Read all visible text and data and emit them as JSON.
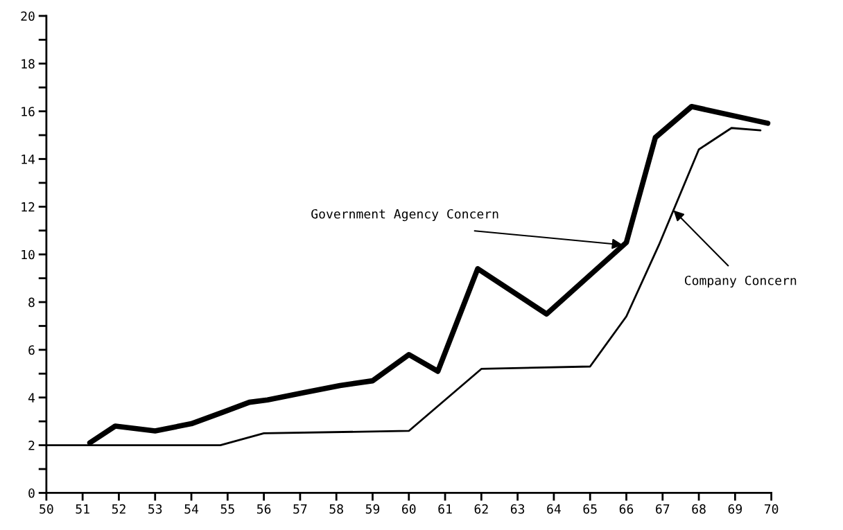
{
  "chart_data": {
    "type": "line",
    "xlim": [
      50,
      70
    ],
    "xticks": [
      50,
      51,
      52,
      53,
      54,
      55,
      56,
      57,
      58,
      59,
      60,
      61,
      62,
      63,
      64,
      65,
      66,
      67,
      68,
      69,
      70
    ],
    "ylim": [
      0,
      20
    ],
    "yticks": [
      0,
      {
        "value": 1,
        "label": null
      },
      2,
      {
        "value": 3,
        "label": null
      },
      4,
      {
        "value": 5,
        "label": null
      },
      6,
      {
        "value": 7,
        "label": null
      },
      8,
      {
        "value": 9,
        "label": null
      },
      10,
      {
        "value": 11,
        "label": null
      },
      12,
      {
        "value": 13,
        "label": null
      },
      14,
      {
        "value": 15,
        "label": null
      },
      16,
      {
        "value": 17,
        "label": null
      },
      18,
      {
        "value": 19,
        "label": null
      },
      20
    ],
    "grid": false,
    "marker": "none",
    "line_style": "solid",
    "series": [
      {
        "color": "#000000",
        "x": [
          51.2,
          51.9,
          53.0,
          54.0,
          54.9,
          55.6,
          56.1,
          57.1,
          58.1,
          59.0,
          60.0,
          60.8,
          61.9,
          63.8,
          66.0,
          66.8,
          67.8,
          69.9
        ],
        "values": [
          2.1,
          2.8,
          2.6,
          2.9,
          3.4,
          3.8,
          3.9,
          4.2,
          4.5,
          4.7,
          5.8,
          5.1,
          9.4,
          7.5,
          10.5,
          14.9,
          16.2,
          15.5
        ]
      },
      {
        "color": "#000000",
        "x": [
          50.0,
          54.8,
          56.0,
          60.0,
          62.0,
          65.0,
          66.0,
          66.9,
          68.0,
          68.9,
          69.7
        ],
        "values": [
          2.0,
          2.0,
          2.5,
          2.6,
          5.2,
          5.3,
          7.4,
          10.4,
          14.4,
          15.3,
          15.2
        ]
      }
    ],
    "annotations": [
      {
        "text": "Government Agency Concern",
        "x": 65.9,
        "y": 10.4
      },
      {
        "text": "Company Concern",
        "x": 67.3,
        "y": 11.85
      }
    ]
  }
}
